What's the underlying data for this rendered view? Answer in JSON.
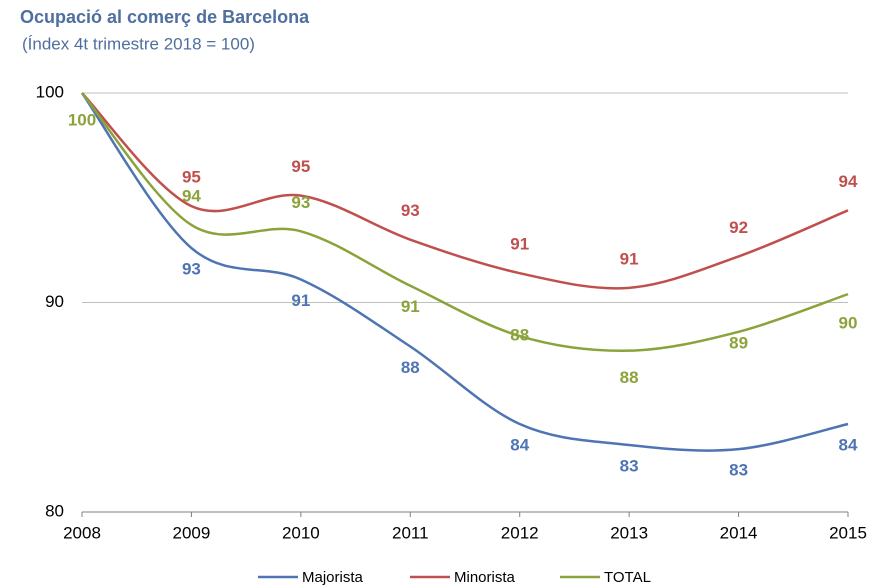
{
  "chart_data": {
    "type": "line",
    "title": "Ocupació al comerç de Barcelona",
    "subtitle": "(Índex 4t trimestre 2018 = 100)",
    "categories": [
      "2008",
      "2009",
      "2010",
      "2011",
      "2012",
      "2013",
      "2014",
      "2015"
    ],
    "ylim": [
      80,
      100
    ],
    "yticks": [
      80,
      90,
      100
    ],
    "grid": true,
    "smooth": true,
    "legend": "bottom",
    "series": [
      {
        "name": "Majorista",
        "color": "#4f74b3",
        "values": [
          100,
          92.6,
          91.1,
          87.9,
          84.2,
          83.2,
          83.0,
          84.2
        ],
        "value_labels": [
          null,
          "93",
          "91",
          "88",
          "84",
          "83",
          "83",
          "84"
        ]
      },
      {
        "name": "Minorista",
        "color": "#c0504d",
        "values": [
          100,
          94.6,
          95.1,
          93.0,
          91.4,
          90.7,
          92.2,
          94.4
        ],
        "value_labels": [
          null,
          "95",
          "95",
          "93",
          "91",
          "91",
          "92",
          "94"
        ]
      },
      {
        "name": "TOTAL",
        "color": "#8aa33a",
        "values": [
          100,
          93.7,
          93.4,
          90.8,
          88.4,
          87.7,
          88.6,
          90.4
        ],
        "value_labels": [
          "100",
          "94",
          "93",
          "91",
          "88",
          "88",
          "89",
          "90"
        ]
      }
    ]
  }
}
